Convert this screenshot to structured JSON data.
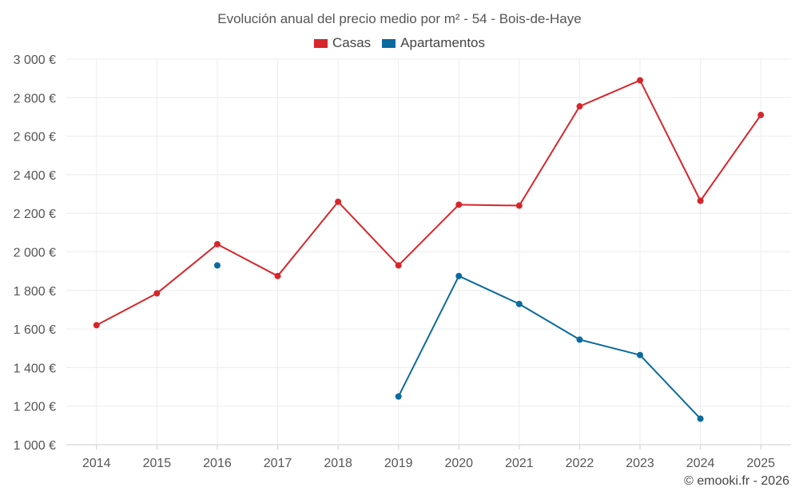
{
  "chart_data": {
    "type": "line",
    "title": "Evolución anual del precio medio por m² - 54 - Bois-de-Haye",
    "categories": [
      "2014",
      "2015",
      "2016",
      "2017",
      "2018",
      "2019",
      "2020",
      "2021",
      "2022",
      "2023",
      "2024",
      "2025"
    ],
    "y_ticks": [
      1000,
      1200,
      1400,
      1600,
      1800,
      2000,
      2200,
      2400,
      2600,
      2800,
      3000
    ],
    "y_tick_labels": [
      "1 000 €",
      "1 200 €",
      "1 400 €",
      "1 600 €",
      "1 800 €",
      "2 000 €",
      "2 200 €",
      "2 400 €",
      "2 600 €",
      "2 800 €",
      "3 000 €"
    ],
    "ylim": [
      1000,
      3000
    ],
    "xlabel": "",
    "ylabel": "",
    "grid": true,
    "legend_position": "top-center",
    "series": [
      {
        "name": "Casas",
        "color": "#d7262b",
        "values": [
          1620,
          1785,
          2040,
          1875,
          2260,
          1930,
          2245,
          2240,
          2755,
          2890,
          2265,
          2710
        ]
      },
      {
        "name": "Apartamentos",
        "color": "#0b6a9f",
        "values": [
          null,
          null,
          1930,
          null,
          null,
          1250,
          1875,
          1730,
          1545,
          1465,
          1135,
          null
        ]
      }
    ]
  },
  "legend": {
    "casas_label": "Casas",
    "apartamentos_label": "Apartamentos"
  },
  "credit": "© emooki.fr - 2026"
}
